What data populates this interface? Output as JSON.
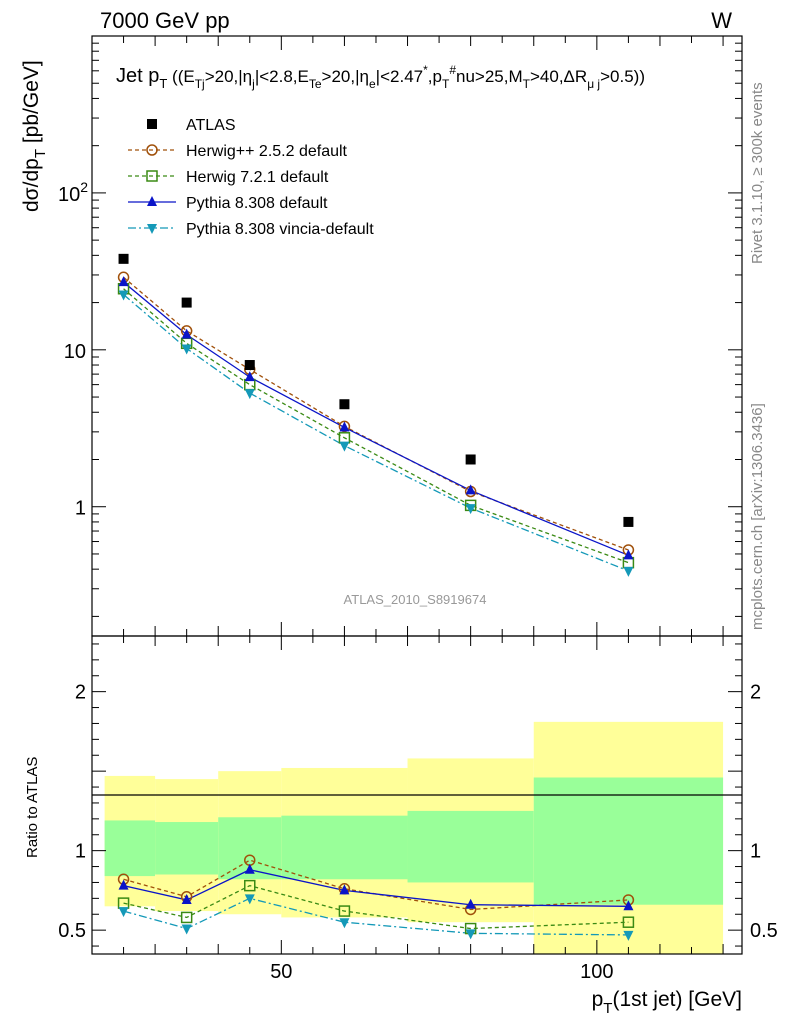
{
  "header": {
    "left": "7000 GeV pp",
    "right": "W"
  },
  "side_text": {
    "rivet": "Rivet 3.1.10, ≥ 300k events",
    "mcplots": "mcplots.cern.ch [arXiv:1306.3436]"
  },
  "watermark": "ATLAS_2010_S8919674",
  "chart_data": [
    {
      "type": "line",
      "title": "Jet p_T ((E_Tj>20,|η_j|<2.8,E_Te>20,|η_e|<2.47*,p_T#nu>25,M_T>40,ΔR_μj>0.5))",
      "ylabel": "dσ/dp_T [pb/GeV]",
      "yscale": "log",
      "ylim": [
        0.15,
        1000
      ],
      "xlim": [
        20,
        123
      ],
      "y_ticks": [
        {
          "v": 1,
          "label": "1"
        },
        {
          "v": 10,
          "label": "10"
        },
        {
          "v": 100,
          "label": "10",
          "sup": "2"
        }
      ],
      "x": [
        25,
        35,
        45,
        60,
        80,
        105
      ],
      "data": {
        "name": "ATLAS",
        "color": "#000000",
        "values": [
          38,
          20,
          8.0,
          4.5,
          2.0,
          0.8
        ]
      },
      "series": [
        {
          "name": "Herwig++ 2.5.2 default",
          "color": "#a0500a",
          "marker": "circle",
          "dash": "4,3",
          "values": [
            29.0,
            13.2,
            7.5,
            3.25,
            1.25,
            0.53
          ]
        },
        {
          "name": "Herwig 7.2.1 default",
          "color": "#3a8a14",
          "marker": "square",
          "dash": "4,3",
          "values": [
            24.5,
            11.0,
            6.0,
            2.75,
            1.02,
            0.44
          ]
        },
        {
          "name": "Pythia 8.308 default",
          "color": "#0a14c8",
          "marker": "triangle-up",
          "dash": "",
          "values": [
            27.0,
            12.5,
            6.7,
            3.2,
            1.27,
            0.49
          ]
        },
        {
          "name": "Pythia 8.308 vincia-default",
          "color": "#1499b8",
          "marker": "triangle-down",
          "dash": "8,3,2,3",
          "values": [
            22.5,
            10.2,
            5.3,
            2.45,
            0.98,
            0.39
          ]
        }
      ]
    },
    {
      "type": "line",
      "ylabel": "Ratio to ATLAS",
      "xlabel": "p_T(1st jet) [GeV]",
      "ylim": [
        0.35,
        2.35
      ],
      "xlim": [
        20,
        123
      ],
      "y_ticks": [
        {
          "v": 0.5,
          "label": "0.5"
        },
        {
          "v": 1,
          "label": "1"
        },
        {
          "v": 2,
          "label": "2"
        }
      ],
      "x_ticks": [
        {
          "v": 50,
          "label": "50"
        },
        {
          "v": 100,
          "label": "100"
        }
      ],
      "bands": [
        {
          "x0": 22,
          "x1": 30,
          "yellow": [
            0.65,
            1.47
          ],
          "green": [
            0.84,
            1.19
          ]
        },
        {
          "x0": 30,
          "x1": 40,
          "yellow": [
            0.62,
            1.45
          ],
          "green": [
            0.85,
            1.18
          ]
        },
        {
          "x0": 40,
          "x1": 50,
          "yellow": [
            0.6,
            1.5
          ],
          "green": [
            0.82,
            1.21
          ]
        },
        {
          "x0": 50,
          "x1": 70,
          "yellow": [
            0.58,
            1.52
          ],
          "green": [
            0.82,
            1.22
          ]
        },
        {
          "x0": 70,
          "x1": 90,
          "yellow": [
            0.55,
            1.58
          ],
          "green": [
            0.8,
            1.25
          ]
        },
        {
          "x0": 90,
          "x1": 120,
          "yellow": [
            0.35,
            1.81
          ],
          "green": [
            0.66,
            1.46
          ]
        }
      ],
      "series": [
        {
          "name": "Herwig++ 2.5.2 default",
          "values": [
            0.82,
            0.71,
            0.94,
            0.76,
            0.63,
            0.69
          ]
        },
        {
          "name": "Herwig 7.2.1 default",
          "values": [
            0.67,
            0.58,
            0.78,
            0.62,
            0.51,
            0.55
          ]
        },
        {
          "name": "Pythia 8.308 default",
          "values": [
            0.78,
            0.69,
            0.88,
            0.75,
            0.66,
            0.65
          ]
        },
        {
          "name": "Pythia 8.308 vincia-default",
          "values": [
            0.62,
            0.51,
            0.7,
            0.55,
            0.48,
            0.47
          ]
        }
      ]
    }
  ]
}
